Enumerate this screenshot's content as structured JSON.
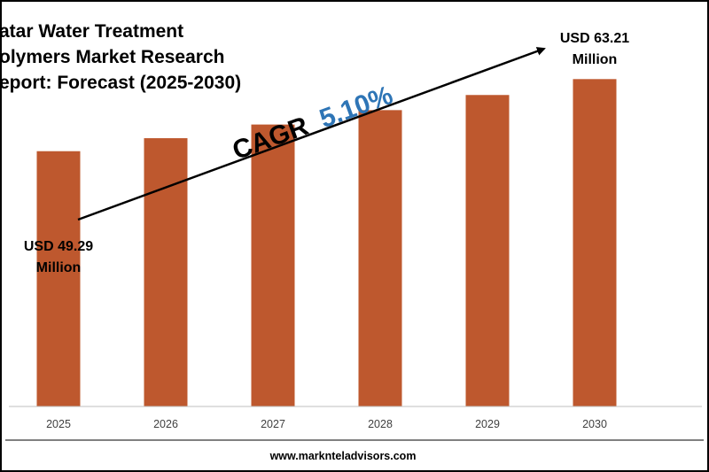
{
  "colors": {
    "bar": "#BE582E",
    "cagr_label": "#000000",
    "cagr_value": "#2E75B6",
    "arrow": "#000000",
    "axis": "#BFBFBF"
  },
  "chart_data": {
    "type": "bar",
    "title_lines": [
      "atar Water Treatment",
      "olymers Market Research",
      "eport: Forecast (2025-2030)"
    ],
    "categories": [
      "2025",
      "2026",
      "2027",
      "2028",
      "2029",
      "2030"
    ],
    "values": [
      49.29,
      51.8,
      54.44,
      57.22,
      60.14,
      63.21
    ],
    "ylim": [
      0,
      66
    ],
    "xlabel": "",
    "ylabel": "",
    "grid": false,
    "legend": "none",
    "annotations": {
      "first_value": [
        "USD 49.29",
        "Million"
      ],
      "last_value": [
        "USD 63.21",
        "Million"
      ],
      "cagr_label": "CAGR",
      "cagr_value": "5.10%"
    }
  },
  "footer": {
    "url": "www.marknteladvisors.com"
  }
}
